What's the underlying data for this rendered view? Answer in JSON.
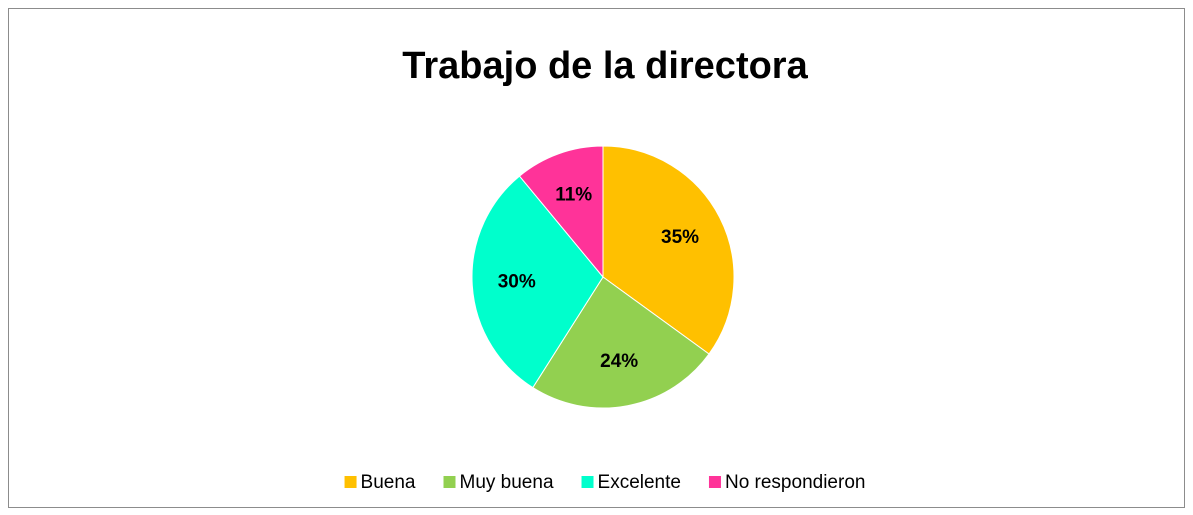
{
  "chart_data": {
    "type": "pie",
    "title": "Trabajo de la directora",
    "categories": [
      "Buena",
      "Muy buena",
      "Excelente",
      "No respondieron"
    ],
    "values": [
      35,
      24,
      30,
      11
    ],
    "value_labels": [
      "35%",
      "24%",
      "30%",
      "11%"
    ],
    "colors": [
      "#ffc000",
      "#92d050",
      "#00ffcc",
      "#ff3399"
    ],
    "legend": "bottom"
  }
}
